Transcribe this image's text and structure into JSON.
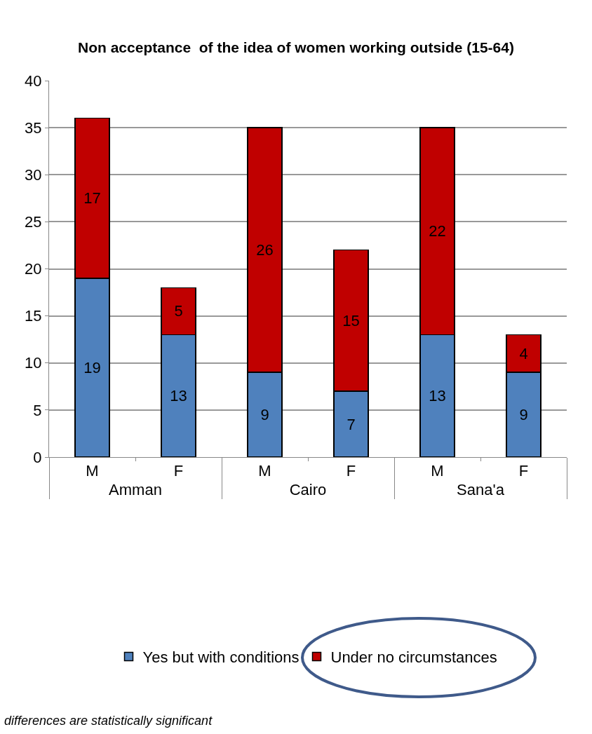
{
  "chart_data": {
    "type": "bar",
    "title": "Non acceptance  of the idea of women working outside (15-64)",
    "categories": [
      "M",
      "F",
      "M",
      "F",
      "M",
      "F"
    ],
    "series": [
      {
        "name": "Yes but with conditions",
        "color": "#4f81bd",
        "values": [
          19,
          13,
          9,
          7,
          13,
          9
        ]
      },
      {
        "name": "Under no circumstances",
        "color": "#c00000",
        "values": [
          17,
          5,
          26,
          15,
          22,
          4
        ]
      }
    ],
    "stacked": true,
    "data_labels": true,
    "ylim": [
      0,
      40
    ],
    "yticks": [
      0,
      5,
      10,
      15,
      20,
      25,
      30,
      35,
      40
    ],
    "grid": "y",
    "legend": "bottom",
    "annotations": [
      "Amman",
      "Cairo",
      "Sana'a",
      "differences are statistically significant"
    ]
  }
}
